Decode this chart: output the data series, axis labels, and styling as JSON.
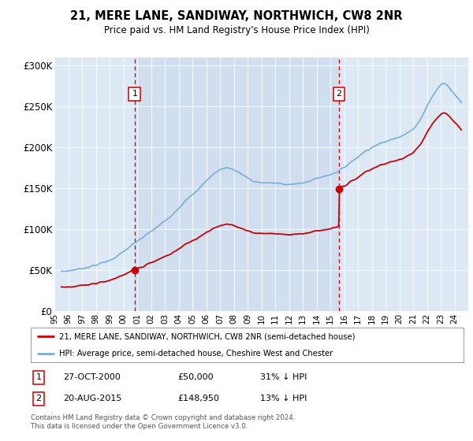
{
  "title": "21, MERE LANE, SANDIWAY, NORTHWICH, CW8 2NR",
  "subtitle": "Price paid vs. HM Land Registry's House Price Index (HPI)",
  "legend_label_red": "21, MERE LANE, SANDIWAY, NORTHWICH, CW8 2NR (semi-detached house)",
  "legend_label_blue": "HPI: Average price, semi-detached house, Cheshire West and Chester",
  "footer": "Contains HM Land Registry data © Crown copyright and database right 2024.\nThis data is licensed under the Open Government Licence v3.0.",
  "sale1_date": "27-OCT-2000",
  "sale1_price": 50000,
  "sale1_label": "1",
  "sale1_hpi": "31% ↓ HPI",
  "sale2_date": "20-AUG-2015",
  "sale2_price": 148950,
  "sale2_label": "2",
  "sale2_hpi": "13% ↓ HPI",
  "ylim": [
    0,
    310000
  ],
  "yticks": [
    0,
    50000,
    100000,
    150000,
    200000,
    250000,
    300000
  ],
  "ytick_labels": [
    "£0",
    "£50K",
    "£100K",
    "£150K",
    "£200K",
    "£250K",
    "£300K"
  ],
  "plot_bg_color": "#dce9f5",
  "highlight_bg_color": "#c8d8ee",
  "red_color": "#cc0000",
  "blue_color": "#7aadd4",
  "vline_color": "#cc0000",
  "marker1_x": 2000.82,
  "marker1_y": 50000,
  "marker2_x": 2015.63,
  "marker2_y": 148950,
  "xmin": 1995.5,
  "xmax": 2024.5
}
